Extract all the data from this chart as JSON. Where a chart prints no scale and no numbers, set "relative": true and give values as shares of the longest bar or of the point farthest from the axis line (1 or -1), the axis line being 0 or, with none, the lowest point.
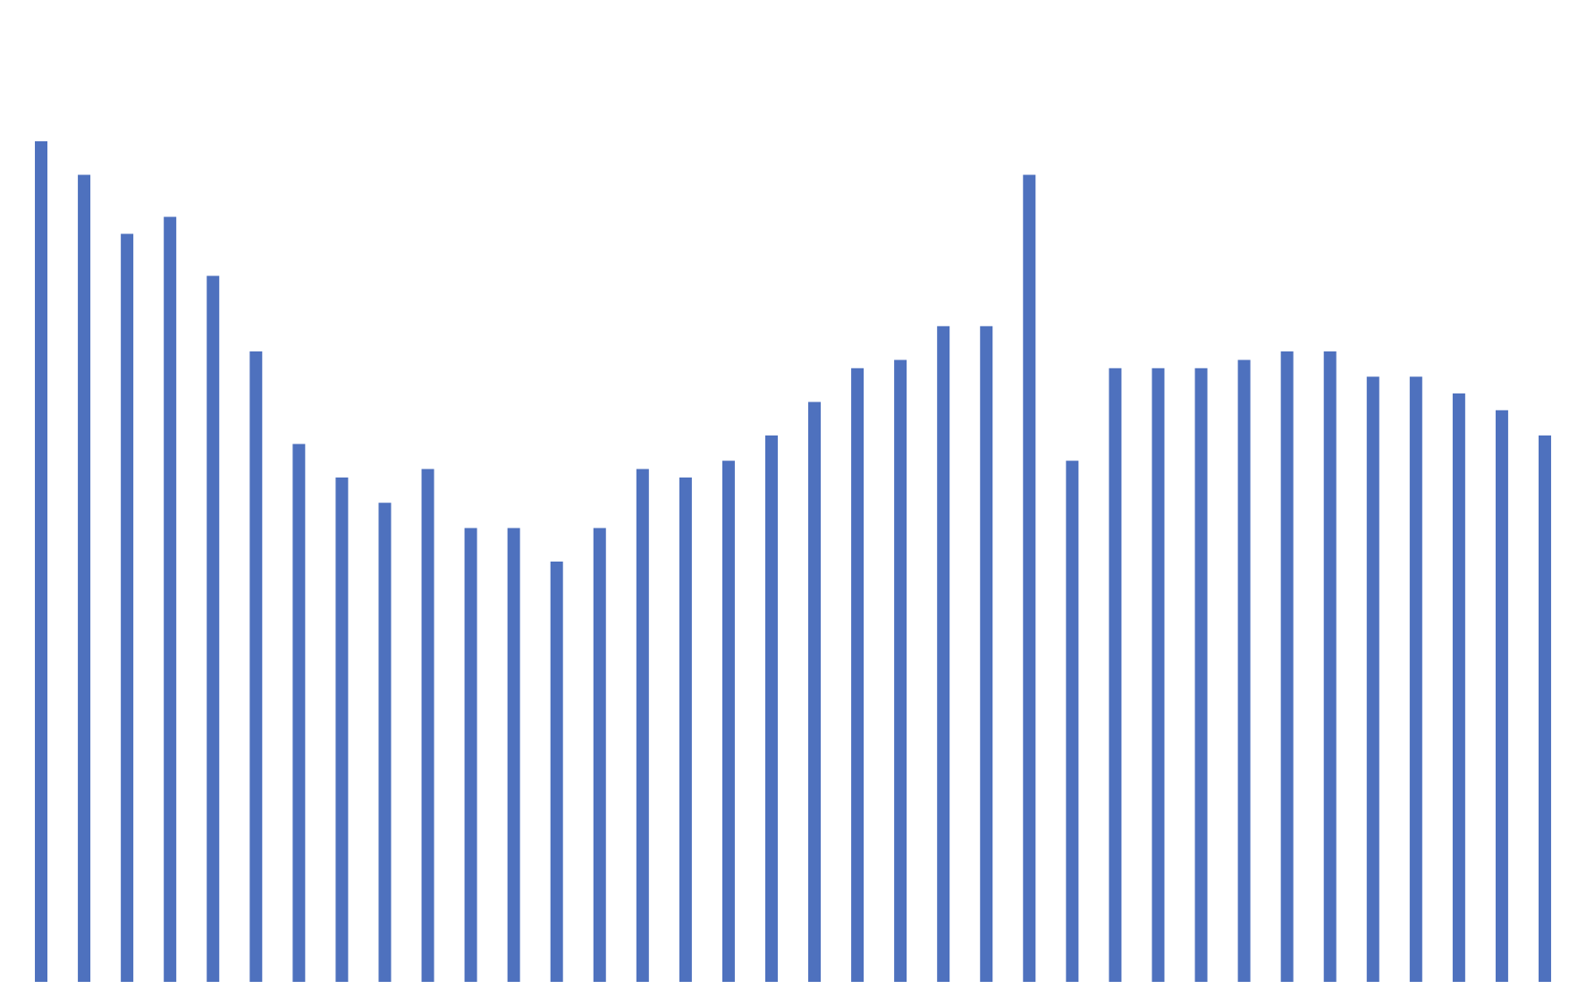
{
  "chart_data": {
    "type": "bar",
    "relative": true,
    "color": "#4e71be",
    "grid": false,
    "categories": [
      null,
      null,
      null,
      null,
      null,
      null,
      null,
      null,
      null,
      null,
      null,
      null,
      null,
      null,
      null,
      null,
      null,
      null,
      null,
      null,
      null,
      null,
      null,
      null,
      null,
      null,
      null,
      null,
      null,
      null,
      null,
      null,
      null,
      null,
      null,
      null
    ],
    "values": [
      1,
      0.96,
      0.89,
      0.91,
      0.84,
      0.75,
      0.64,
      0.6,
      0.57,
      0.61,
      0.54,
      0.54,
      0.5,
      0.54,
      0.61,
      0.6,
      0.62,
      0.65,
      0.69,
      0.73,
      0.74,
      0.78,
      0.78,
      0.96,
      0.62,
      0.73,
      0.73,
      0.73,
      0.74,
      0.75,
      0.75,
      0.72,
      0.72,
      0.7,
      0.68,
      0.65
    ]
  }
}
